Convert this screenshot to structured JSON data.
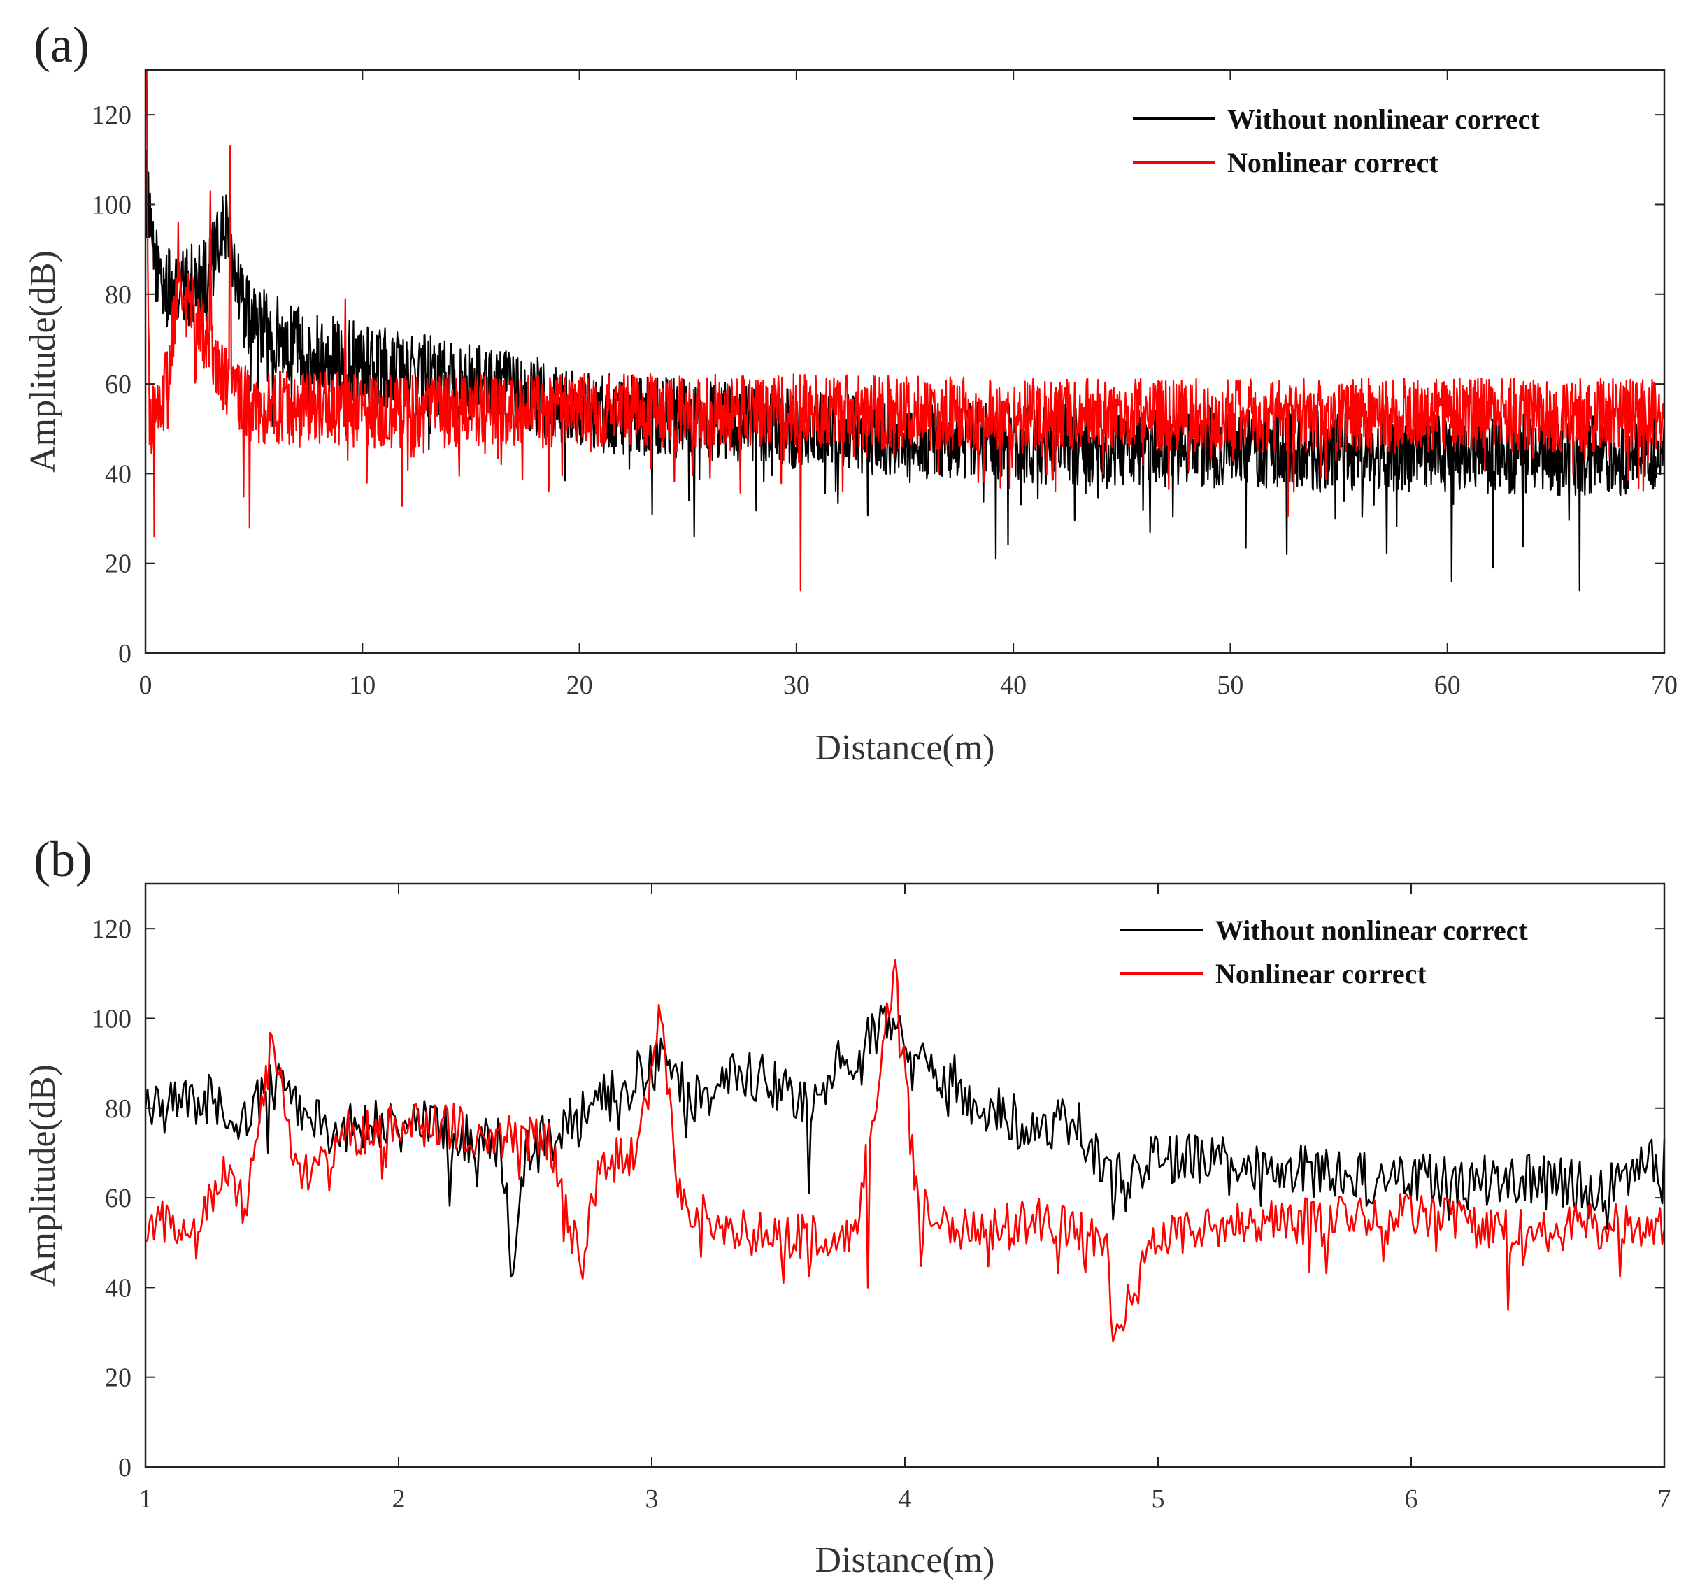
{
  "figure": {
    "panels": [
      "(a)",
      "(b)"
    ]
  },
  "chart_data": [
    {
      "id": "a",
      "type": "line",
      "panel_label": "(a)",
      "title": "",
      "xlabel": "Distance(m)",
      "ylabel": "Amplitude(dB)",
      "xlim": [
        0,
        70
      ],
      "ylim": [
        0,
        130
      ],
      "xticks": [
        0,
        10,
        20,
        30,
        40,
        50,
        60,
        70
      ],
      "yticks": [
        0,
        20,
        40,
        60,
        80,
        100,
        120
      ],
      "legend_position": "top-right",
      "grid": false,
      "series": [
        {
          "name": "Without nonlinear correct",
          "color": "#000000",
          "x": [
            0,
            0.3,
            0.8,
            1.5,
            2,
            2.6,
            3.2,
            3.8,
            4.2,
            4.6,
            5,
            6,
            7,
            8,
            9,
            10,
            12,
            14,
            16,
            18,
            20,
            25,
            30,
            35,
            40,
            45,
            50,
            55,
            60,
            65,
            70
          ],
          "y": [
            105,
            90,
            82,
            80,
            82,
            84,
            88,
            97,
            84,
            76,
            74,
            71,
            69,
            67,
            66,
            65,
            63,
            61,
            59,
            57,
            54,
            52,
            50,
            48,
            47,
            46,
            46,
            45,
            45,
            44,
            44
          ],
          "noise_amplitude_db": 12,
          "min_dips_db": [
            {
              "x": 25.3,
              "y": 26
            },
            {
              "x": 39.2,
              "y": 21
            },
            {
              "x": 52.6,
              "y": 22
            },
            {
              "x": 60.2,
              "y": 16
            },
            {
              "x": 62.1,
              "y": 19
            },
            {
              "x": 66.1,
              "y": 14
            }
          ]
        },
        {
          "name": "Nonlinear correct",
          "color": "#ff0000",
          "x": [
            0,
            0.2,
            0.6,
            1.0,
            1.5,
            2.0,
            2.5,
            3.0,
            3.5,
            4.0,
            4.5,
            5,
            10,
            20,
            30,
            40,
            50,
            60,
            70
          ],
          "y": [
            130,
            50,
            55,
            60,
            80,
            78,
            72,
            68,
            62,
            58,
            56,
            55,
            54,
            54,
            54,
            53,
            53,
            53,
            53
          ],
          "noise_amplitude_db": 11,
          "peaks_db": [
            {
              "x": 0.05,
              "y": 130
            },
            {
              "x": 1.5,
              "y": 96
            },
            {
              "x": 3.0,
              "y": 103
            },
            {
              "x": 3.9,
              "y": 113
            },
            {
              "x": 9.2,
              "y": 79
            }
          ],
          "min_dips_db": [
            {
              "x": 0.4,
              "y": 26
            },
            {
              "x": 4.8,
              "y": 28
            },
            {
              "x": 30.2,
              "y": 14
            }
          ]
        }
      ]
    },
    {
      "id": "b",
      "type": "line",
      "panel_label": "(b)",
      "title": "",
      "xlabel": "Distance(m)",
      "ylabel": "Amplitude(dB)",
      "xlim": [
        1,
        7
      ],
      "ylim": [
        0,
        130
      ],
      "xticks": [
        1,
        2,
        3,
        4,
        5,
        6,
        7
      ],
      "yticks": [
        0,
        20,
        40,
        60,
        80,
        100,
        120
      ],
      "legend_position": "top-right",
      "grid": false,
      "series": [
        {
          "name": "Without nonlinear correct",
          "color": "#000000",
          "x": [
            1.0,
            1.1,
            1.2,
            1.28,
            1.33,
            1.4,
            1.5,
            1.6,
            1.7,
            1.8,
            1.9,
            2.0,
            2.1,
            2.2,
            2.3,
            2.4,
            2.45,
            2.5,
            2.6,
            2.7,
            2.8,
            2.9,
            3.0,
            3.05,
            3.1,
            3.2,
            3.3,
            3.4,
            3.5,
            3.6,
            3.7,
            3.8,
            3.9,
            3.96,
            4.0,
            4.1,
            4.2,
            4.3,
            4.4,
            4.5,
            4.6,
            4.7,
            4.8,
            4.9,
            5.0,
            5.2,
            5.4,
            5.6,
            5.8,
            6.0,
            6.2,
            6.4,
            6.6,
            6.8,
            6.9,
            7.0
          ],
          "y": [
            81,
            80,
            81,
            83,
            72,
            78,
            86,
            80,
            76,
            75,
            77,
            76,
            77,
            74,
            72,
            73,
            44,
            70,
            75,
            78,
            82,
            85,
            89,
            90,
            85,
            82,
            86,
            87,
            85,
            80,
            88,
            92,
            97,
            100,
            94,
            90,
            86,
            80,
            78,
            76,
            77,
            75,
            66,
            65,
            69,
            68,
            67,
            66,
            64,
            64,
            63,
            64,
            63,
            62,
            66,
            68
          ],
          "noise_amplitude_db": 8,
          "min_dips_db": [
            {
              "x": 2.45,
              "y": 43
            },
            {
              "x": 3.62,
              "y": 61
            },
            {
              "x": 4.87,
              "y": 57
            }
          ]
        },
        {
          "name": "Nonlinear correct",
          "color": "#ff0000",
          "x": [
            1.0,
            1.1,
            1.2,
            1.3,
            1.4,
            1.5,
            1.6,
            1.7,
            1.8,
            1.9,
            2.0,
            2.2,
            2.4,
            2.6,
            2.72,
            2.8,
            2.95,
            3.03,
            3.1,
            3.2,
            3.4,
            3.6,
            3.8,
            3.96,
            4.05,
            4.2,
            4.4,
            4.6,
            4.8,
            4.82,
            5.0,
            5.2,
            5.4,
            5.6,
            5.8,
            6.0,
            6.2,
            6.4,
            6.6,
            6.8,
            7.0
          ],
          "y": [
            53,
            55,
            50,
            66,
            58,
            95,
            66,
            68,
            75,
            74,
            76,
            76,
            74,
            73,
            44,
            68,
            70,
            102,
            62,
            56,
            52,
            51,
            50,
            113,
            58,
            52,
            54,
            55,
            48,
            28,
            52,
            53,
            54,
            55,
            55,
            56,
            54,
            52,
            53,
            54,
            54
          ],
          "noise_amplitude_db": 7,
          "peaks_db": [
            {
              "x": 1.5,
              "y": 96
            },
            {
              "x": 3.03,
              "y": 103
            },
            {
              "x": 3.96,
              "y": 113
            }
          ],
          "min_dips_db": [
            {
              "x": 2.72,
              "y": 44
            },
            {
              "x": 3.85,
              "y": 40
            },
            {
              "x": 4.82,
              "y": 28
            },
            {
              "x": 6.38,
              "y": 35
            }
          ]
        }
      ]
    }
  ]
}
